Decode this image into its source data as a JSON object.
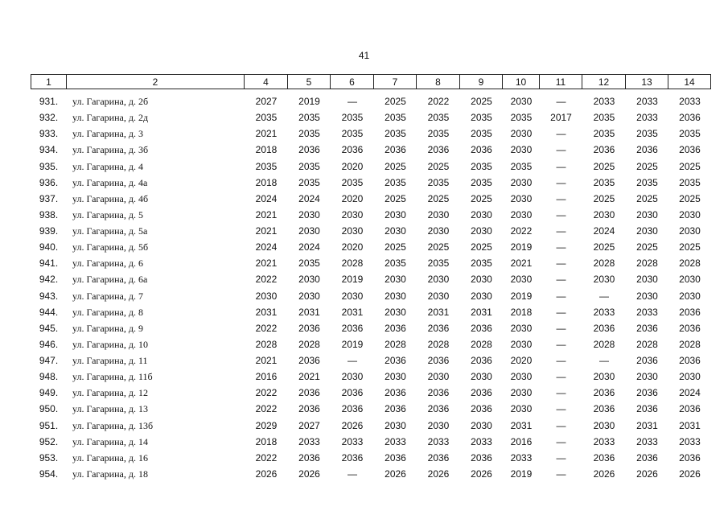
{
  "page_number": "41",
  "table": {
    "header": [
      "1",
      "2",
      "4",
      "5",
      "6",
      "7",
      "8",
      "9",
      "10",
      "11",
      "12",
      "13",
      "14"
    ],
    "rows": [
      [
        "931.",
        "ул. Гагарина, д. 2б",
        "2027",
        "2019",
        "—",
        "2025",
        "2022",
        "2025",
        "2030",
        "—",
        "2033",
        "2033",
        "2033"
      ],
      [
        "932.",
        "ул. Гагарина, д. 2д",
        "2035",
        "2035",
        "2035",
        "2035",
        "2035",
        "2035",
        "2035",
        "2017",
        "2035",
        "2033",
        "2036"
      ],
      [
        "933.",
        "ул. Гагарина, д. 3",
        "2021",
        "2035",
        "2035",
        "2035",
        "2035",
        "2035",
        "2030",
        "—",
        "2035",
        "2035",
        "2035"
      ],
      [
        "934.",
        "ул. Гагарина, д. 3б",
        "2018",
        "2036",
        "2036",
        "2036",
        "2036",
        "2036",
        "2030",
        "—",
        "2036",
        "2036",
        "2036"
      ],
      [
        "935.",
        "ул. Гагарина, д. 4",
        "2035",
        "2035",
        "2020",
        "2025",
        "2025",
        "2035",
        "2035",
        "—",
        "2025",
        "2025",
        "2025"
      ],
      [
        "936.",
        "ул. Гагарина, д. 4а",
        "2018",
        "2035",
        "2035",
        "2035",
        "2035",
        "2035",
        "2030",
        "—",
        "2035",
        "2035",
        "2035"
      ],
      [
        "937.",
        "ул. Гагарина, д. 4б",
        "2024",
        "2024",
        "2020",
        "2025",
        "2025",
        "2025",
        "2030",
        "—",
        "2025",
        "2025",
        "2025"
      ],
      [
        "938.",
        "ул. Гагарина, д. 5",
        "2021",
        "2030",
        "2030",
        "2030",
        "2030",
        "2030",
        "2030",
        "—",
        "2030",
        "2030",
        "2030"
      ],
      [
        "939.",
        "ул. Гагарина, д. 5а",
        "2021",
        "2030",
        "2030",
        "2030",
        "2030",
        "2030",
        "2022",
        "—",
        "2024",
        "2030",
        "2030"
      ],
      [
        "940.",
        "ул. Гагарина, д. 5б",
        "2024",
        "2024",
        "2020",
        "2025",
        "2025",
        "2025",
        "2019",
        "—",
        "2025",
        "2025",
        "2025"
      ],
      [
        "941.",
        "ул. Гагарина, д. 6",
        "2021",
        "2035",
        "2028",
        "2035",
        "2035",
        "2035",
        "2021",
        "—",
        "2028",
        "2028",
        "2028"
      ],
      [
        "942.",
        "ул. Гагарина, д. 6а",
        "2022",
        "2030",
        "2019",
        "2030",
        "2030",
        "2030",
        "2030",
        "—",
        "2030",
        "2030",
        "2030"
      ],
      [
        "943.",
        "ул. Гагарина, д. 7",
        "2030",
        "2030",
        "2030",
        "2030",
        "2030",
        "2030",
        "2019",
        "—",
        "—",
        "2030",
        "2030"
      ],
      [
        "944.",
        "ул. Гагарина, д. 8",
        "2031",
        "2031",
        "2031",
        "2030",
        "2031",
        "2031",
        "2018",
        "—",
        "2033",
        "2033",
        "2036"
      ],
      [
        "945.",
        "ул. Гагарина, д. 9",
        "2022",
        "2036",
        "2036",
        "2036",
        "2036",
        "2036",
        "2030",
        "—",
        "2036",
        "2036",
        "2036"
      ],
      [
        "946.",
        "ул. Гагарина, д. 10",
        "2028",
        "2028",
        "2019",
        "2028",
        "2028",
        "2028",
        "2030",
        "—",
        "2028",
        "2028",
        "2028"
      ],
      [
        "947.",
        "ул. Гагарина, д. 11",
        "2021",
        "2036",
        "—",
        "2036",
        "2036",
        "2036",
        "2020",
        "—",
        "—",
        "2036",
        "2036"
      ],
      [
        "948.",
        "ул. Гагарина, д. 11б",
        "2016",
        "2021",
        "2030",
        "2030",
        "2030",
        "2030",
        "2030",
        "—",
        "2030",
        "2030",
        "2030"
      ],
      [
        "949.",
        "ул. Гагарина, д. 12",
        "2022",
        "2036",
        "2036",
        "2036",
        "2036",
        "2036",
        "2030",
        "—",
        "2036",
        "2036",
        "2024"
      ],
      [
        "950.",
        "ул. Гагарина, д. 13",
        "2022",
        "2036",
        "2036",
        "2036",
        "2036",
        "2036",
        "2030",
        "—",
        "2036",
        "2036",
        "2036"
      ],
      [
        "951.",
        "ул. Гагарина, д. 13б",
        "2029",
        "2027",
        "2026",
        "2030",
        "2030",
        "2030",
        "2031",
        "—",
        "2030",
        "2031",
        "2031"
      ],
      [
        "952.",
        "ул. Гагарина, д. 14",
        "2018",
        "2033",
        "2033",
        "2033",
        "2033",
        "2033",
        "2016",
        "—",
        "2033",
        "2033",
        "2033"
      ],
      [
        "953.",
        "ул. Гагарина, д. 16",
        "2022",
        "2036",
        "2036",
        "2036",
        "2036",
        "2036",
        "2033",
        "—",
        "2036",
        "2036",
        "2036"
      ],
      [
        "954.",
        "ул. Гагарина, д. 18",
        "2026",
        "2026",
        "—",
        "2026",
        "2026",
        "2026",
        "2019",
        "—",
        "2026",
        "2026",
        "2026"
      ]
    ]
  }
}
